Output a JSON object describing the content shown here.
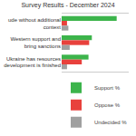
{
  "chart_data": {
    "type": "bar",
    "orientation": "horizontal",
    "title": "Survey Results - December 2024",
    "categories": [
      "ude without additional\ncontext",
      "Western support and\nbring sanctions",
      "Ukraine has resources\ndevelopment is finished"
    ],
    "series": [
      {
        "name": "Support %",
        "color": "#3cb44b",
        "values": [
          82,
          45,
          40
        ]
      },
      {
        "name": "Oppose %",
        "color": "#e8413c",
        "values": [
          8,
          41,
          30
        ]
      },
      {
        "name": "Undecided %",
        "color": "#a0a0a0",
        "values": [
          10,
          12,
          8
        ]
      }
    ],
    "xlim": [
      0,
      100
    ],
    "grid": false,
    "legend": "bottom",
    "tick_labels": false
  }
}
